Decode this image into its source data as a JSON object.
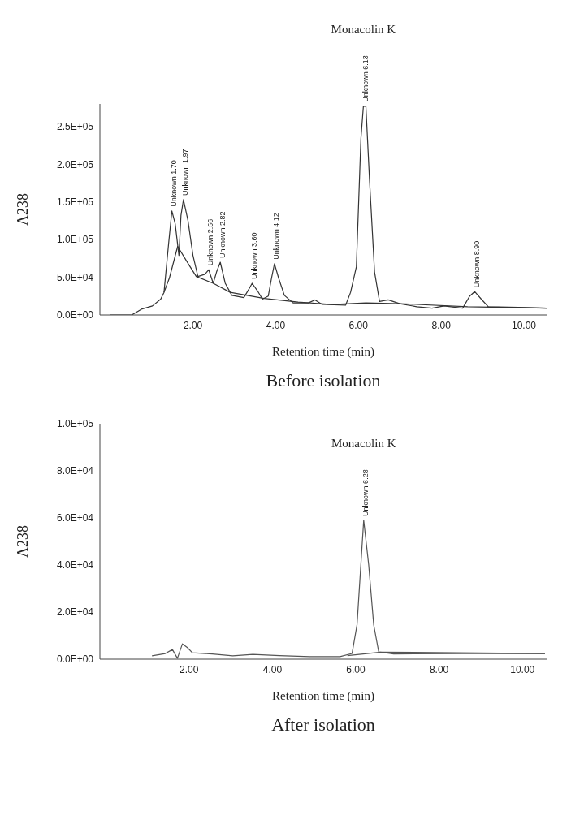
{
  "chart_data": [
    {
      "type": "line",
      "title": "Before isolation",
      "xlabel": "Retention time (min)",
      "ylabel": "A238",
      "xlim": [
        -0.25,
        10.55
      ],
      "ylim": [
        0,
        280000
      ],
      "xticks": [
        {
          "value": 2,
          "label": "2.00"
        },
        {
          "value": 4,
          "label": "4.00"
        },
        {
          "value": 6,
          "label": "6.00"
        },
        {
          "value": 8,
          "label": "8.00"
        },
        {
          "value": 10,
          "label": "10.00"
        }
      ],
      "yticks": [
        {
          "value": 0,
          "label": "0.0E+00"
        },
        {
          "value": 50000,
          "label": "5.0E+04"
        },
        {
          "value": 100000,
          "label": "1.0E+05"
        },
        {
          "value": 150000,
          "label": "1.5E+05"
        },
        {
          "value": 200000,
          "label": "2.0E+05"
        },
        {
          "value": 250000,
          "label": "2.5E+05"
        }
      ],
      "series": [
        {
          "color": "#333333",
          "x": [
            0,
            0.52,
            0.77,
            1.02,
            1.22,
            1.3,
            1.41,
            1.49,
            1.57,
            1.66,
            1.71,
            1.77,
            1.88,
            2.0,
            2.12,
            2.29,
            2.38,
            2.49,
            2.57,
            2.66,
            2.78,
            2.94,
            3.23,
            3.35,
            3.43,
            3.56,
            3.68,
            3.82,
            3.9,
            3.97,
            4.07,
            4.21,
            4.42,
            4.79,
            4.95,
            5.12,
            5.69,
            5.81,
            5.95,
            6.06,
            6.12,
            6.18,
            6.27,
            6.39,
            6.51,
            6.72,
            7.0,
            7.41,
            7.78,
            8.07,
            8.52,
            8.69,
            8.81,
            8.97,
            9.14,
            9.87,
            10.55
          ],
          "values": [
            0,
            0,
            8000,
            12000,
            21000,
            30000,
            94000,
            138000,
            121000,
            79000,
            132000,
            153000,
            125000,
            79000,
            51000,
            54000,
            60000,
            42000,
            57000,
            70000,
            42000,
            26000,
            23000,
            34000,
            42000,
            32000,
            21000,
            25000,
            49000,
            68000,
            49000,
            26000,
            16000,
            16000,
            20000,
            14000,
            13000,
            30000,
            64000,
            234000,
            277000,
            277000,
            177000,
            57000,
            18000,
            20000,
            15000,
            11000,
            9000,
            12000,
            9000,
            25000,
            31000,
            21000,
            11000,
            10000,
            9000
          ]
        },
        {
          "color": "#333333",
          "x": [
            1.3,
            1.43,
            1.63,
            1.84,
            2.08,
            2.49,
            2.9,
            3.72,
            4.54,
            5.36,
            6.18,
            7.0,
            8.64,
            10.55
          ],
          "values": [
            30000,
            49000,
            91000,
            72000,
            51000,
            42000,
            30000,
            22000,
            17000,
            14000,
            16000,
            15000,
            11000,
            9000
          ]
        }
      ],
      "annotations": [
        {
          "text": "Unknown 1.70",
          "x": 1.49,
          "y": 138000
        },
        {
          "text": "Unknown 1.97",
          "x": 1.77,
          "y": 153000
        },
        {
          "text": "Unknown 2.56",
          "x": 2.38,
          "y": 60000
        },
        {
          "text": "Unknown 2.82",
          "x": 2.66,
          "y": 70000
        },
        {
          "text": "Unknown 3.60",
          "x": 3.43,
          "y": 42000
        },
        {
          "text": "Unknown 4.12",
          "x": 3.97,
          "y": 68000
        },
        {
          "text": "Unknown 6.13",
          "x": 6.12,
          "y": 277000
        },
        {
          "text": "Unknown 8.90",
          "x": 8.81,
          "y": 31000
        },
        "Monacolin K"
      ]
    },
    {
      "type": "line",
      "title": "After isolation",
      "xlabel": "Retention time (min)",
      "ylabel": "A238",
      "xlim": [
        -0.14,
        10.58
      ],
      "ylim": [
        0,
        100000
      ],
      "xticks": [
        {
          "value": 2,
          "label": "2.00"
        },
        {
          "value": 4,
          "label": "4.00"
        },
        {
          "value": 6,
          "label": "6.00"
        },
        {
          "value": 8,
          "label": "8.00"
        },
        {
          "value": 10,
          "label": "10.00"
        }
      ],
      "yticks": [
        {
          "value": 0,
          "label": "0.0E+00"
        },
        {
          "value": 20000,
          "label": "2.0E+04"
        },
        {
          "value": 40000,
          "label": "4.0E+04"
        },
        {
          "value": 60000,
          "label": "6.0E+04"
        },
        {
          "value": 80000,
          "label": "8.0E+04"
        },
        {
          "value": 100000,
          "label": "1.0E+05"
        }
      ],
      "series": [
        {
          "color": "#555555",
          "x": [
            1.11,
            1.43,
            1.6,
            1.72,
            1.84,
            1.96,
            2.08,
            2.4,
            2.56,
            3.05,
            3.53,
            4.17,
            4.9,
            5.62,
            5.91,
            6.03,
            6.19,
            6.31,
            6.43,
            6.55,
            6.91,
            8.53,
            10.54
          ],
          "values": [
            1400,
            2400,
            4100,
            400,
            6500,
            4900,
            2700,
            2400,
            2200,
            1400,
            2000,
            1500,
            1100,
            1100,
            2400,
            14600,
            59000,
            40000,
            14600,
            3100,
            2200,
            2400,
            2400
          ]
        },
        {
          "color": "#555555",
          "x": [
            5.8,
            6.6,
            10.54
          ],
          "values": [
            1500,
            3000,
            2400
          ]
        }
      ],
      "annotations": [
        {
          "text": "Unknown 6.28",
          "x": 6.19,
          "y": 59000
        },
        "Monacolin K"
      ]
    }
  ]
}
